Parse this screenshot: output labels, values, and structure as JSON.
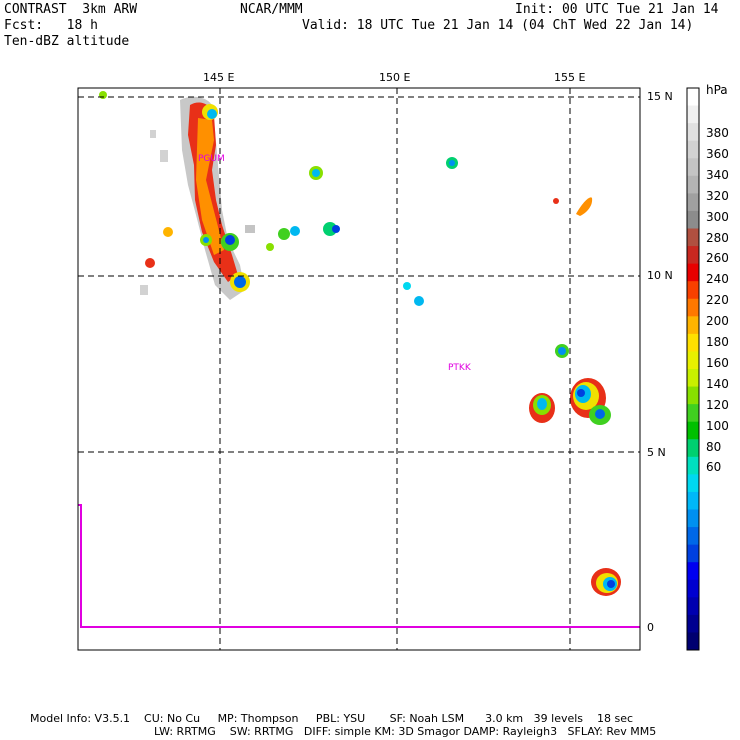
{
  "header": {
    "model": "CONTRAST  3km ARW",
    "org": "NCAR/MMM",
    "init": "Init: 00 UTC Tue 21 Jan 14",
    "fcst": "Fcst:   18 h",
    "valid": "Valid: 18 UTC Tue 21 Jan 14 (04 ChT Wed 22 Jan 14)",
    "field": "Ten-dBZ altitude"
  },
  "axes": {
    "lon_labels": [
      "145 E",
      "150 E",
      "155 E"
    ],
    "lat_labels": [
      "15 N",
      "10 N",
      "5 N",
      "0"
    ]
  },
  "stations": [
    "PGUM",
    "PTKK"
  ],
  "colorbar": {
    "unit": "hPa",
    "labels": [
      "380",
      "360",
      "340",
      "320",
      "300",
      "280",
      "260",
      "240",
      "220",
      "200",
      "180",
      "160",
      "140",
      "120",
      "100",
      "80",
      "60"
    ],
    "colors": [
      "#ffffff",
      "#f0f0f0",
      "#e0e0e0",
      "#d2d2d2",
      "#c4c4c4",
      "#b4b4b4",
      "#a0a0a0",
      "#8c8c8c",
      "#b05040",
      "#c82820",
      "#e80000",
      "#f84000",
      "#ff7800",
      "#ffb400",
      "#ffe000",
      "#e8f000",
      "#c8f000",
      "#88e000",
      "#40d020",
      "#00c000",
      "#00d070",
      "#00e0c0",
      "#00d8f0",
      "#00b8f8",
      "#0090f0",
      "#0068e8",
      "#0040e0",
      "#0000f0",
      "#0000d0",
      "#0000b0",
      "#000090",
      "#000070"
    ]
  },
  "footer": {
    "line1": "Model Info: V3.5.1    CU: No Cu     MP: Thompson     PBL: YSU       SF: Noah LSM      3.0 km   39 levels    18 sec",
    "line2": "LW: RRTMG    SW: RRTMG   DIFF: simple KM: 3D Smagor DAMP: Rayleigh3   SFLAY: Rev MM5"
  }
}
